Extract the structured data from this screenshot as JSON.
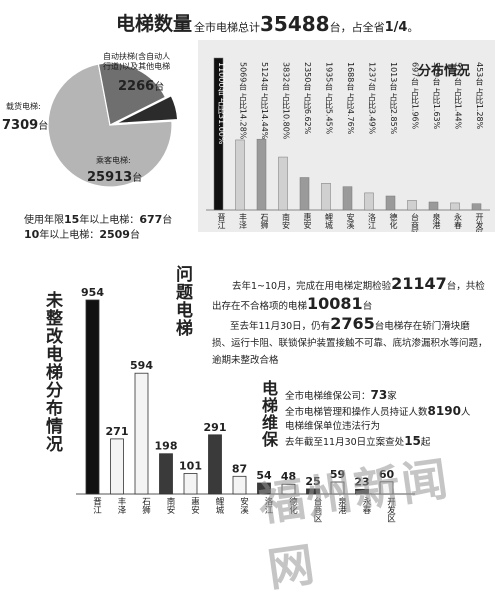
{
  "header": {
    "title": "电梯数量",
    "total_prefix": "全市电梯总计",
    "total_value": "35488",
    "total_suffix": "台，占全省",
    "share": "1/4",
    "share_suffix": "。"
  },
  "pie": {
    "slices": [
      {
        "name": "乘客电梯",
        "value": 25913,
        "value_label": "25913",
        "unit": "台",
        "color": "#b5b5b5"
      },
      {
        "name": "载货电梯",
        "value": 7309,
        "value_label": "7309",
        "unit": "台",
        "color": "#6f6f6f"
      },
      {
        "name": "自动扶梯(含自动人行道)以及其他电梯",
        "value": 2266,
        "value_label": "2266",
        "unit": "台",
        "color": "#2b2b2b"
      }
    ],
    "label_passenger": "乘客电梯:",
    "label_freight": "载货电梯:",
    "label_escalator_line1": "自动扶梯(含自动人",
    "label_escalator_line2": "行道)以及其他电梯"
  },
  "age": {
    "line1_prefix": "使用年限",
    "line1_mid": "15",
    "line1_mid2": "年以上电梯：",
    "line1_value": "677",
    "line1_unit": "台",
    "line2_prefix": "10",
    "line2_mid": "年以上电梯：",
    "line2_value": "2509",
    "line2_unit": "台"
  },
  "distribution": {
    "title": "分布情况",
    "bar_labels": [
      "11000台 占比31.00%",
      "5069台 占比14.28%",
      "5124台 占比14.44%",
      "3832台 占比10.80%",
      "2350台 占比6.62%",
      "1935台 占比5.45%",
      "1688台 占比4.76%",
      "1237台 占比3.49%",
      "1013台 占比2.85%",
      "697台 占比1.96%",
      "579台 占比1.63%",
      "511台 占比1.44%",
      "453台 占比1.28%"
    ]
  },
  "problem": {
    "title": "问题电梯",
    "line1_a": "去年1~10月，完成在用电梯定期检验",
    "line1_num": "21147",
    "line1_b": "台，共检",
    "line2_a": "出存在不合格项的电梯",
    "line2_num": "10081",
    "line2_b": "台",
    "line3_a": "至去年11月30日，仍有",
    "line3_num": "2765",
    "line3_b": "台电梯存在轿门滑块磨",
    "line4": "损、运行卡阻、联锁保护装置接触不可靠、底坑渗漏积水等问题，",
    "line5": "逾期未整改合格"
  },
  "unfixed": {
    "title": "未整改电梯分布情况"
  },
  "maintenance": {
    "title": "电梯维保",
    "line1_a": "全市电梯维保公司：",
    "line1_num": "73",
    "line1_b": "家",
    "line2_a": "全市电梯管理和操作人员持证人数",
    "line2_num": "8190",
    "line2_b": "人",
    "line3": "电梯维保单位违法行为",
    "line4_a": "去年截至11月30日立案查处",
    "line4_num": "15",
    "line4_b": "起"
  },
  "watermark": {
    "text": "福州新闻网"
  },
  "chart_data": [
    {
      "type": "bar",
      "title": "分布情况",
      "categories": [
        "晋江",
        "丰泽",
        "石狮",
        "南安",
        "惠安",
        "鲤城",
        "安溪",
        "洛江",
        "德化",
        "台商区",
        "泉港",
        "永春",
        "开发区"
      ],
      "values": [
        11000,
        5069,
        5124,
        3832,
        2350,
        1935,
        1688,
        1237,
        1013,
        697,
        579,
        511,
        453
      ],
      "percent": [
        31.0,
        14.28,
        14.44,
        10.8,
        6.62,
        5.45,
        4.76,
        3.49,
        2.85,
        1.96,
        1.63,
        1.44,
        1.28
      ]
    },
    {
      "type": "bar",
      "title": "未整改电梯分布情况",
      "categories": [
        "晋江",
        "丰泽",
        "石狮",
        "南安",
        "惠安",
        "鲤城",
        "安溪",
        "洛江",
        "德化",
        "台商区",
        "泉港",
        "永春",
        "开发区"
      ],
      "values": [
        954,
        271,
        594,
        198,
        101,
        291,
        87,
        54,
        48,
        25,
        59,
        23,
        60
      ],
      "value_labels": [
        "954",
        "271",
        "594",
        "198",
        "101",
        "291",
        "87",
        "54",
        "48",
        "25",
        "59",
        "23",
        "60"
      ]
    },
    {
      "type": "pie",
      "categories": [
        "乘客电梯",
        "载货电梯",
        "自动扶梯(含自动人行道)以及其他电梯"
      ],
      "values": [
        25913,
        7309,
        2266
      ]
    }
  ]
}
